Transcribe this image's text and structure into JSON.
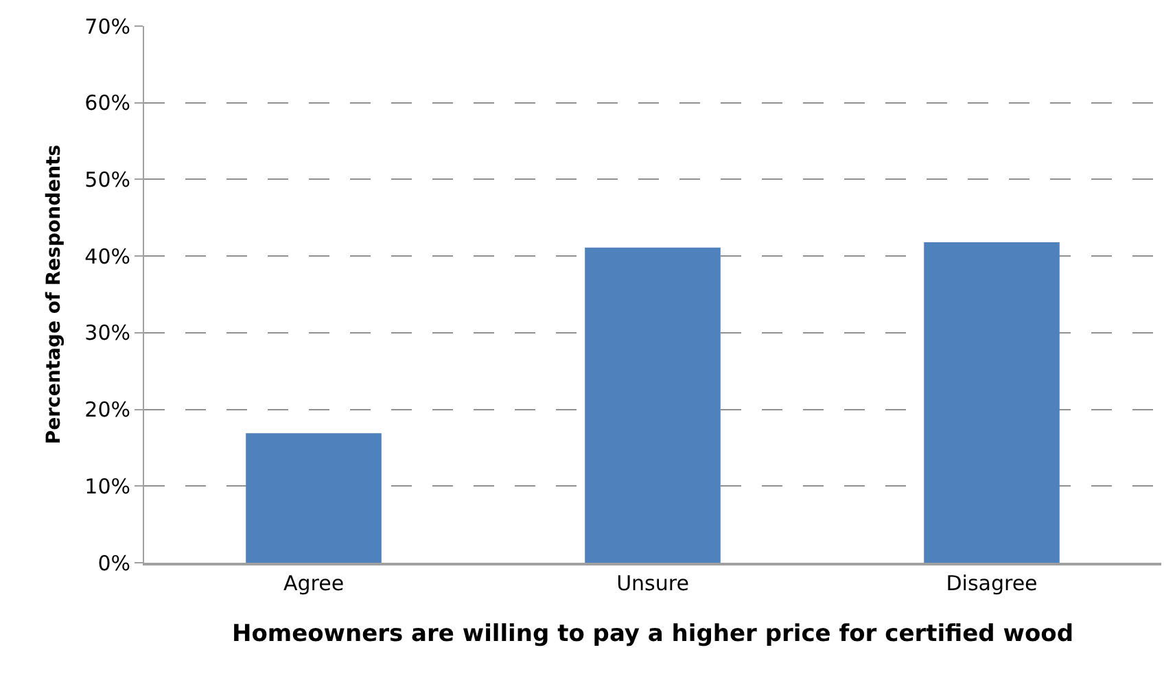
{
  "chart_data": {
    "type": "bar",
    "xlabel": "Homeowners are willing to pay a higher price for certified wood",
    "ylabel": "Percentage of Respondents",
    "categories": [
      "Agree",
      "Unsure",
      "Disagree"
    ],
    "values": [
      16.9,
      41.1,
      41.8
    ],
    "color": "#4f81bd",
    "ylim": [
      0,
      70
    ],
    "yticks": [
      {
        "value": 0,
        "label": "0%"
      },
      {
        "value": 10,
        "label": "10%"
      },
      {
        "value": 20,
        "label": "20%"
      },
      {
        "value": 30,
        "label": "30%"
      },
      {
        "value": 40,
        "label": "40%"
      },
      {
        "value": 50,
        "label": "50%"
      },
      {
        "value": 60,
        "label": "60%"
      },
      {
        "value": 70,
        "label": "70%"
      }
    ],
    "grid": "y"
  }
}
